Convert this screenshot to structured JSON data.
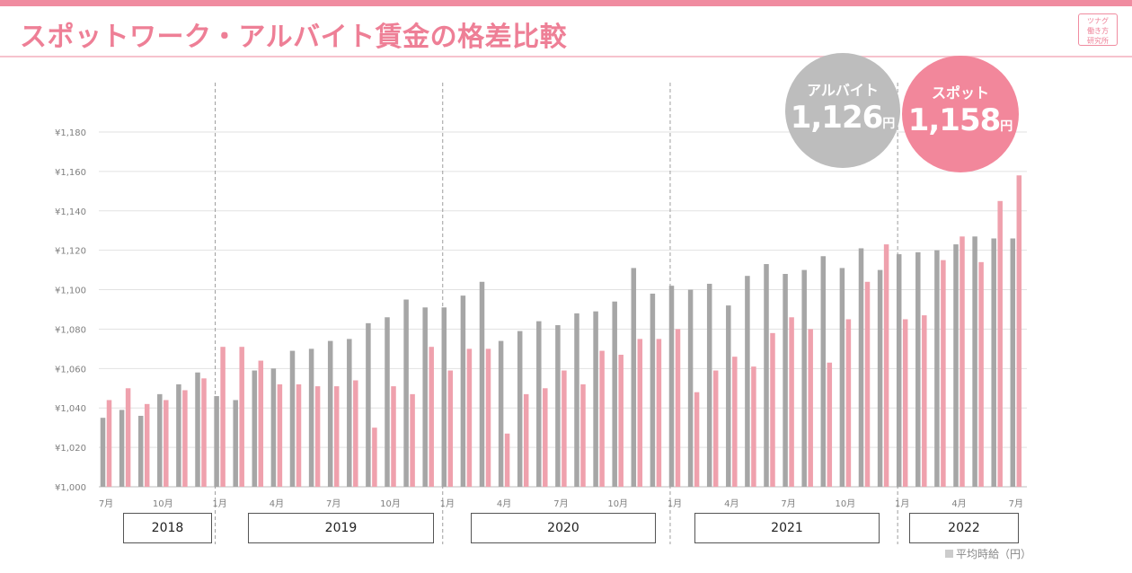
{
  "header": {
    "title": "スポットワーク・アルバイト賃金の格差比較",
    "logo_lines": [
      "ツナグ",
      "働き方",
      "研究所"
    ]
  },
  "badges": [
    {
      "label": "アルバイト",
      "value": "1,126",
      "unit": "円",
      "color": "#bdbdbd"
    },
    {
      "label": "スポット",
      "value": "1,158",
      "unit": "円",
      "color": "#f2879b"
    }
  ],
  "legend": {
    "text": "平均時給（円）"
  },
  "years": [
    "2018",
    "2019",
    "2020",
    "2021",
    "2022"
  ],
  "chart_data": {
    "type": "bar",
    "ylim": [
      1000,
      1180
    ],
    "ytick_step": 20,
    "ytick_labels": [
      "¥1,000",
      "¥1,020",
      "¥1,040",
      "¥1,060",
      "¥1,080",
      "¥1,100",
      "¥1,120",
      "¥1,140",
      "¥1,160",
      "¥1,180"
    ],
    "grid": true,
    "categories": [
      "2018-07",
      "2018-08",
      "2018-09",
      "2018-10",
      "2018-11",
      "2018-12",
      "2019-01",
      "2019-02",
      "2019-03",
      "2019-04",
      "2019-05",
      "2019-06",
      "2019-07",
      "2019-08",
      "2019-09",
      "2019-10",
      "2019-11",
      "2019-12",
      "2020-01",
      "2020-02",
      "2020-03",
      "2020-04",
      "2020-05",
      "2020-06",
      "2020-07",
      "2020-08",
      "2020-09",
      "2020-10",
      "2020-11",
      "2020-12",
      "2021-01",
      "2021-02",
      "2021-03",
      "2021-04",
      "2021-05",
      "2021-06",
      "2021-07",
      "2021-08",
      "2021-09",
      "2021-10",
      "2021-11",
      "2021-12",
      "2022-01",
      "2022-02",
      "2022-03",
      "2022-04",
      "2022-05",
      "2022-06",
      "2022-07"
    ],
    "x_tick_labels": [
      "7月",
      "",
      "",
      "10月",
      "",
      "",
      "1月",
      "",
      "",
      "4月",
      "",
      "",
      "7月",
      "",
      "",
      "10月",
      "",
      "",
      "1月",
      "",
      "",
      "4月",
      "",
      "",
      "7月",
      "",
      "",
      "10月",
      "",
      "",
      "1月",
      "",
      "",
      "4月",
      "",
      "",
      "7月",
      "",
      "",
      "10月",
      "",
      "",
      "1月",
      "",
      "",
      "4月",
      "",
      "",
      "7月"
    ],
    "series": [
      {
        "name": "アルバイト",
        "color": "#a6a6a6",
        "values": [
          1035,
          1039,
          1036,
          1047,
          1052,
          1058,
          1046,
          1044,
          1059,
          1060,
          1069,
          1070,
          1074,
          1075,
          1083,
          1086,
          1095,
          1091,
          1091,
          1097,
          1104,
          1074,
          1079,
          1084,
          1082,
          1088,
          1089,
          1094,
          1111,
          1098,
          1102,
          1100,
          1103,
          1092,
          1107,
          1113,
          1108,
          1110,
          1117,
          1111,
          1121,
          1110,
          1118,
          1119,
          1120,
          1123,
          1127,
          1126,
          1126
        ]
      },
      {
        "name": "スポット",
        "color": "#efa1ad",
        "values": [
          1044,
          1050,
          1042,
          1044,
          1049,
          1055,
          1071,
          1071,
          1064,
          1052,
          1052,
          1051,
          1051,
          1054,
          1030,
          1051,
          1047,
          1071,
          1059,
          1070,
          1070,
          1027,
          1047,
          1050,
          1059,
          1052,
          1069,
          1067,
          1075,
          1075,
          1080,
          1048,
          1059,
          1066,
          1061,
          1078,
          1086,
          1080,
          1063,
          1085,
          1104,
          1123,
          1085,
          1087,
          1115,
          1127,
          1114,
          1145,
          1158
        ]
      }
    ]
  }
}
